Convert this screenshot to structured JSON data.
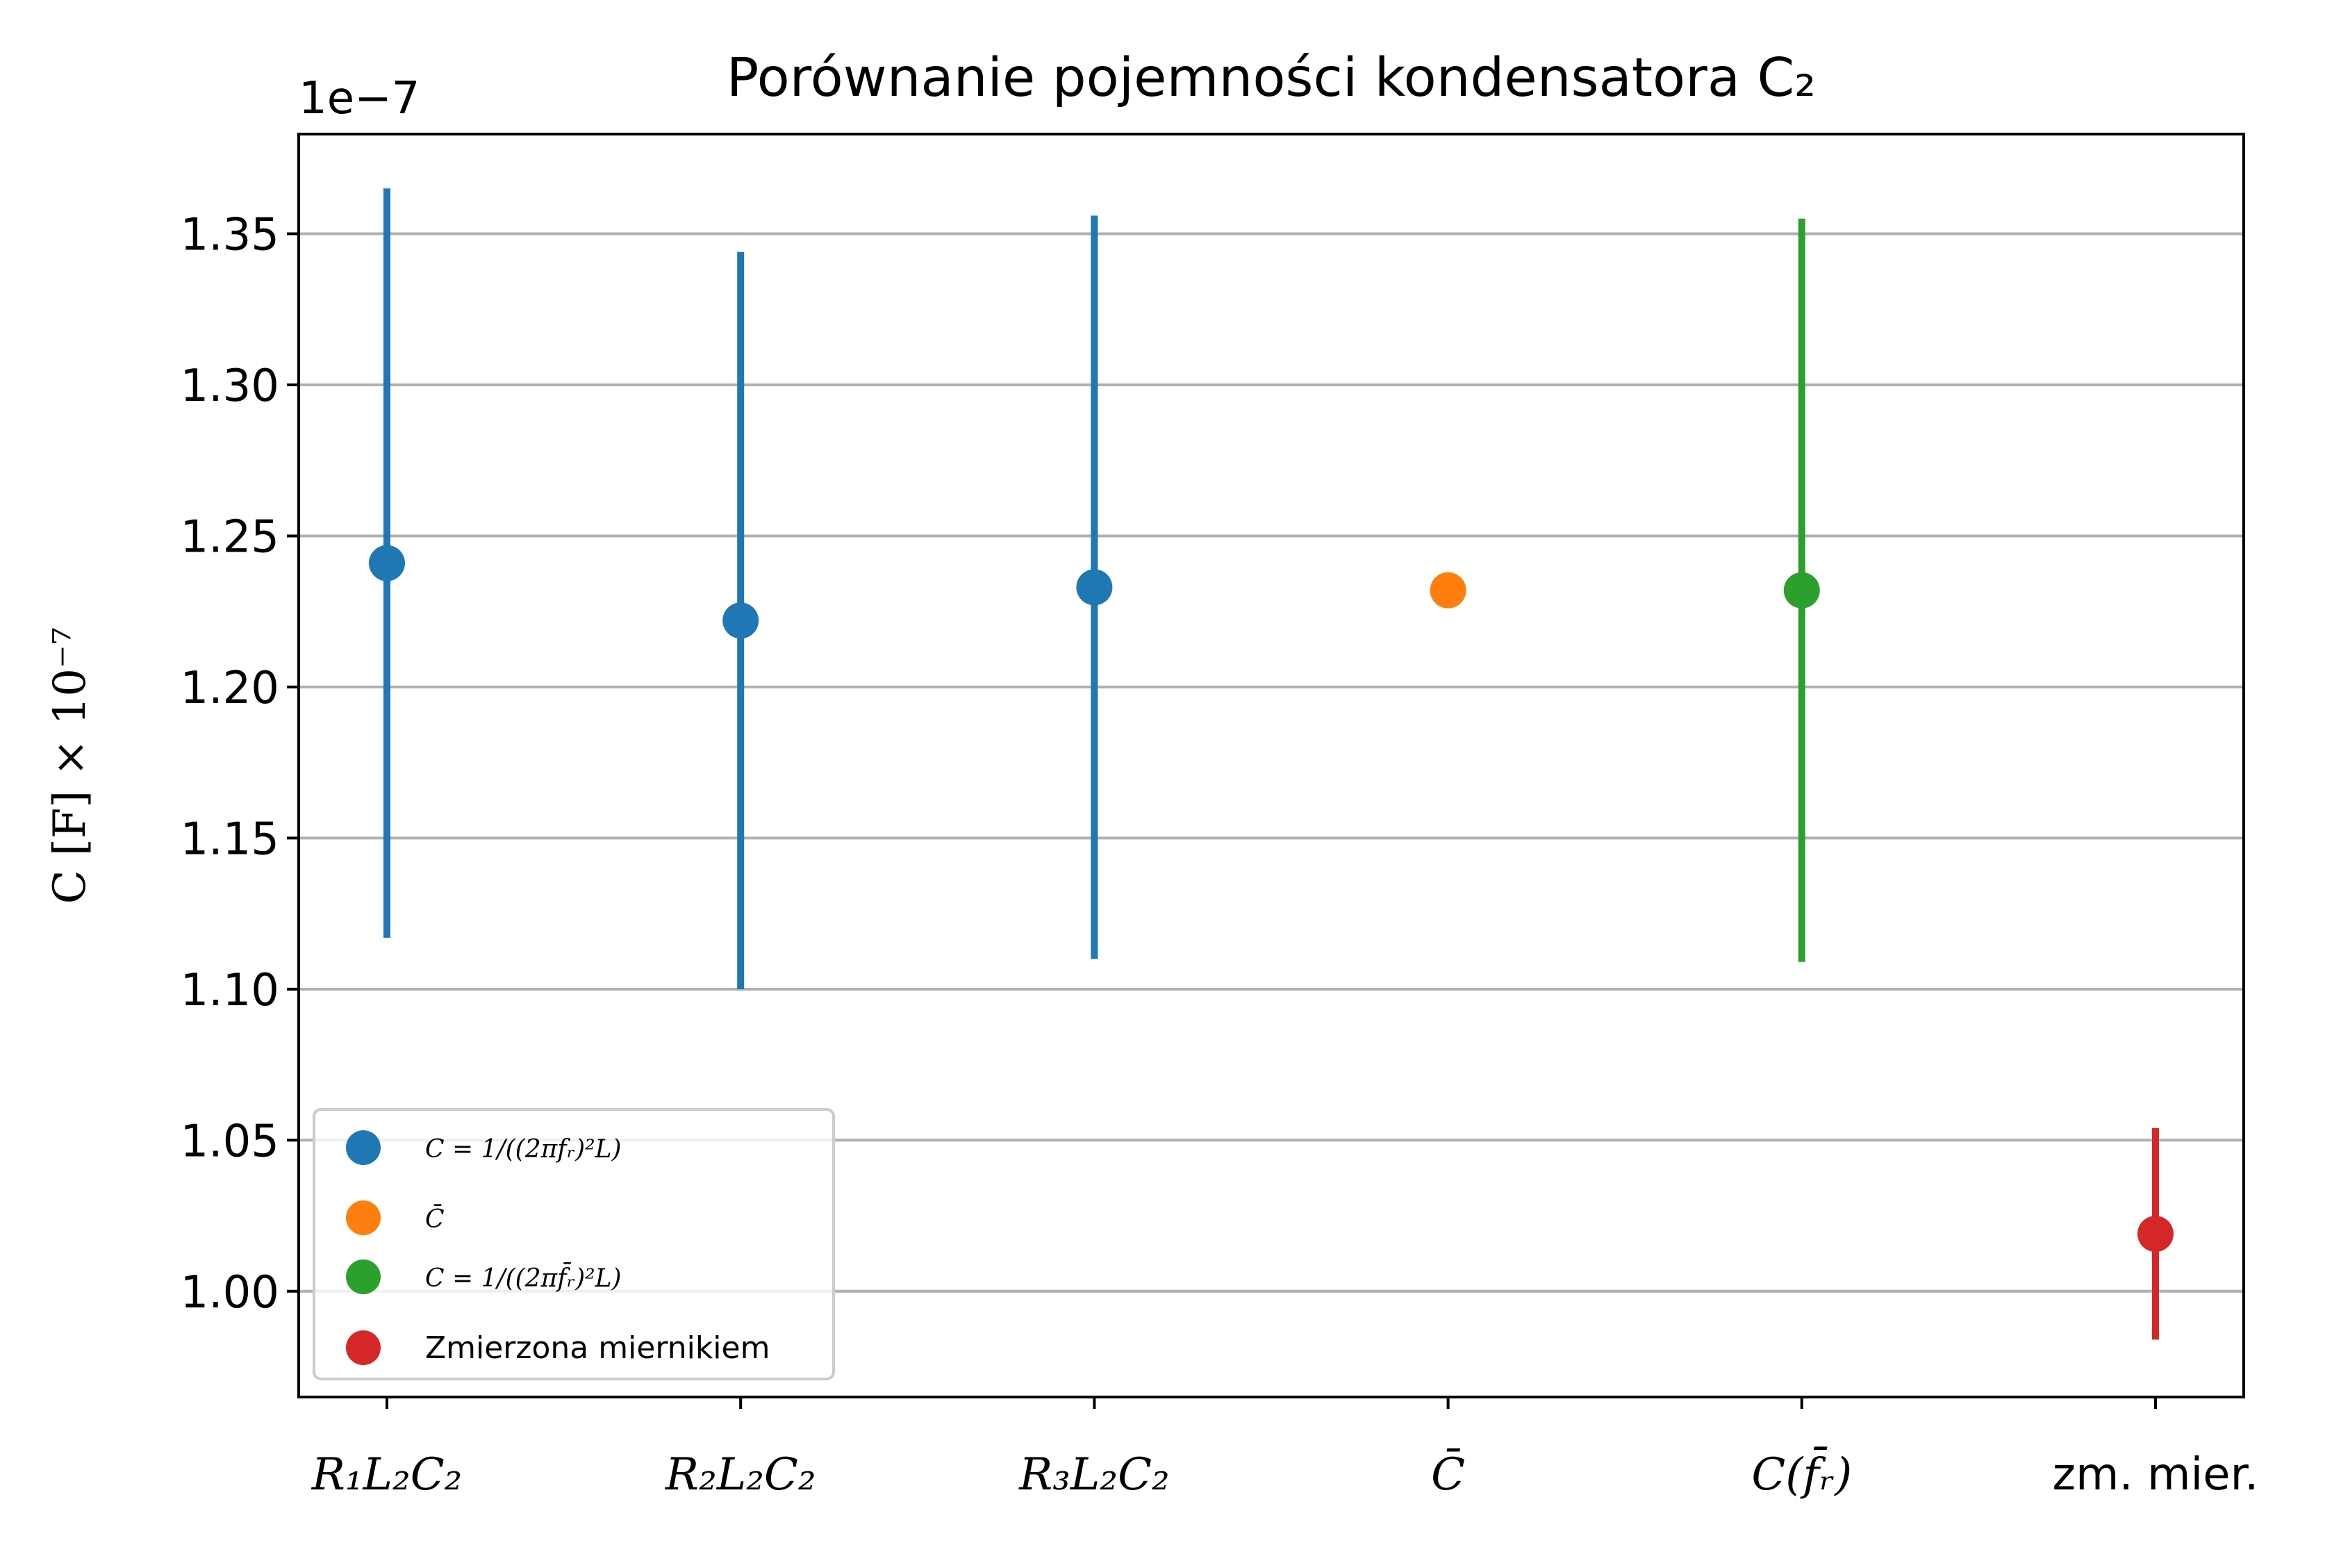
{
  "chart_data": {
    "type": "scatter",
    "title": "Porównanie pojemności kondensatora C₂",
    "ylabel": "C   [F] × 10⁻⁷",
    "offset_text": "1e−7",
    "categories": [
      "R₁L₂C₂",
      "R₂L₂C₂",
      "R₃L₂C₂",
      "C̄",
      "C(f̄ᵣ)",
      "zm. mier."
    ],
    "ylim": [
      0.965,
      1.383
    ],
    "yticks": [
      "1.00",
      "1.05",
      "1.10",
      "1.15",
      "1.20",
      "1.25",
      "1.30",
      "1.35"
    ],
    "grid": "horizontal",
    "legend_placement": "lower-left",
    "series": [
      {
        "name": "C = 1/((2πfᵣ)²L)",
        "color": "#1f77b4",
        "points": [
          {
            "x": "R₁L₂C₂",
            "y": 1.241,
            "err": 0.124
          },
          {
            "x": "R₂L₂C₂",
            "y": 1.222,
            "err": 0.122
          },
          {
            "x": "R₃L₂C₂",
            "y": 1.233,
            "err": 0.123
          }
        ]
      },
      {
        "name": "C̄",
        "color": "#ff7f0e",
        "points": [
          {
            "x": "C̄",
            "y": 1.232,
            "err": 0
          }
        ]
      },
      {
        "name": "C = 1/((2πf̄ᵣ)²L)",
        "color": "#2ca02c",
        "points": [
          {
            "x": "C(f̄ᵣ)",
            "y": 1.232,
            "err": 0.123
          }
        ]
      },
      {
        "name": "Zmierzona miernikiem",
        "color": "#d62728",
        "points": [
          {
            "x": "zm. mier.",
            "y": 1.019,
            "err": 0.035
          }
        ]
      }
    ]
  }
}
